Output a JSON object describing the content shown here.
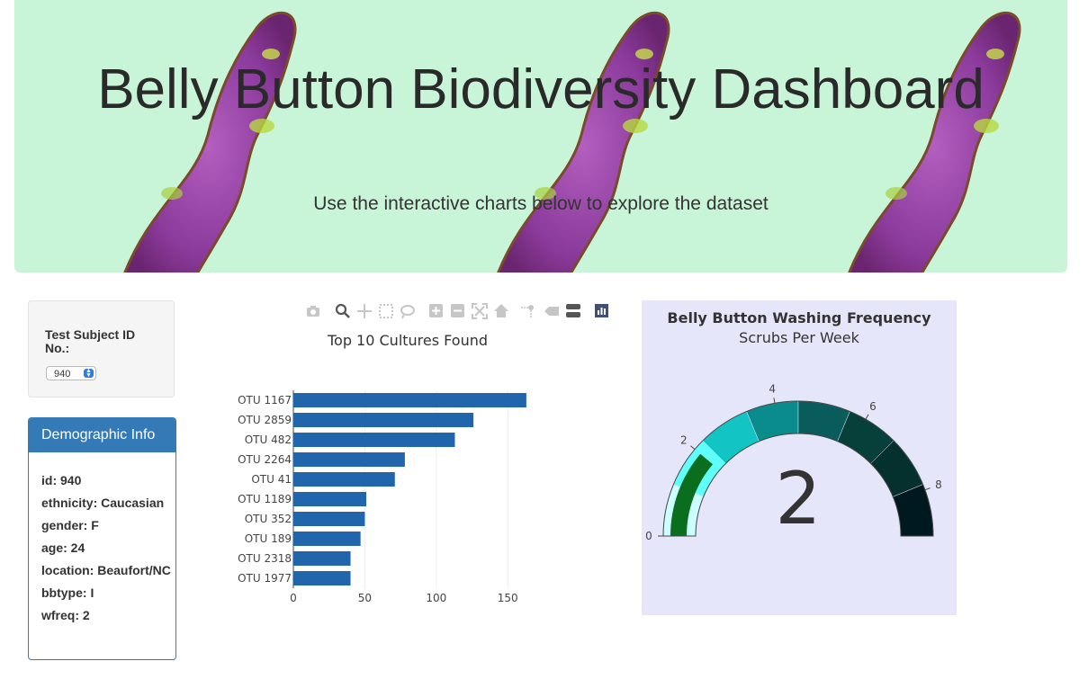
{
  "header": {
    "title": "Belly Button Biodiversity Dashboard",
    "subtitle": "Use the interactive charts below to explore the dataset"
  },
  "selector": {
    "label": "Test Subject ID No.:",
    "value": "940"
  },
  "demographics": {
    "heading": "Demographic Info",
    "rows": [
      "id: 940",
      "ethnicity: Caucasian",
      "gender: F",
      "age: 24",
      "location: Beaufort/NC",
      "bbtype: I",
      "wfreq: 2"
    ]
  },
  "toolbar": {
    "icons": [
      "camera-icon",
      "zoom-icon",
      "pan-icon",
      "box-select-icon",
      "lasso-select-icon",
      "zoom-in-icon",
      "zoom-out-icon",
      "autoscale-icon",
      "reset-axes-icon",
      "spike-lines-icon",
      "hover-closest-icon",
      "hover-compare-icon",
      "plotly-logo-icon"
    ]
  },
  "chart_data": [
    {
      "type": "bar",
      "orientation": "horizontal",
      "title": "Top 10 Cultures Found",
      "categories": [
        "OTU 1167",
        "OTU 2859",
        "OTU 482",
        "OTU 2264",
        "OTU 41",
        "OTU 1189",
        "OTU 352",
        "OTU 189",
        "OTU 2318",
        "OTU 1977"
      ],
      "values": [
        163,
        126,
        113,
        78,
        71,
        51,
        50,
        47,
        40,
        40
      ],
      "xlim": [
        0,
        170
      ],
      "xticks": [
        0,
        50,
        100,
        150
      ],
      "grid": true,
      "color": "#2166ac"
    },
    {
      "type": "gauge",
      "title": "Belly Button Washing Frequency",
      "subtitle": "Scrubs Per Week",
      "value": 2,
      "range": [
        0,
        9
      ],
      "ticks": [
        0,
        2,
        4,
        6,
        8
      ],
      "bar_color": "#0a6e1e",
      "step_colors": [
        "#ccffff",
        "#5ffffa",
        "#13c4c4",
        "#0a8c8c",
        "#0a5c5c",
        "#07403a",
        "#04302e",
        "#00181f"
      ],
      "background": "#e6e6fa"
    }
  ]
}
